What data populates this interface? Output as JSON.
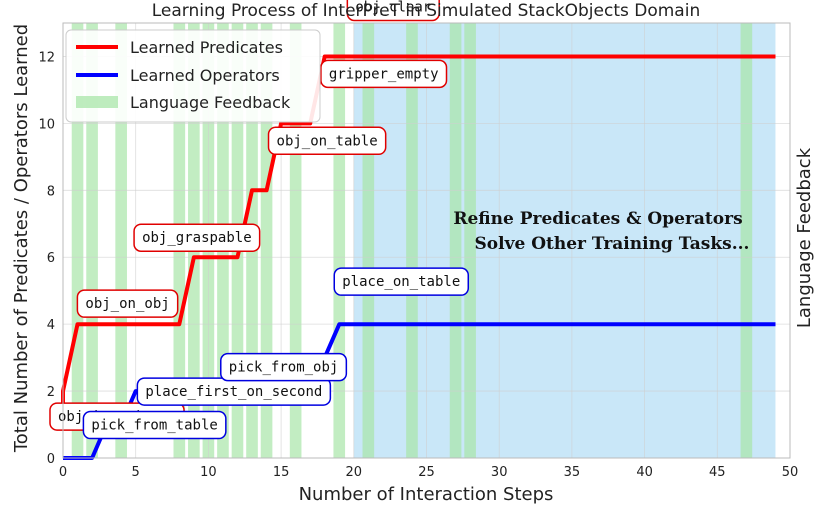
{
  "chart_data": {
    "type": "line",
    "title": "Learning Process of InterPreT in Simulated StackObjects Domain",
    "xlabel": "Number of Interaction Steps",
    "ylabel": "Total Number of Predicates / Operators Learned",
    "right_label": "Language Feedback",
    "xlim": [
      0,
      50
    ],
    "ylim": [
      0,
      13
    ],
    "x_ticks": [
      "0",
      "5",
      "10",
      "15",
      "20",
      "25",
      "30",
      "35",
      "40",
      "45",
      "50"
    ],
    "y_ticks": [
      "0",
      "2",
      "4",
      "6",
      "8",
      "10",
      "12"
    ],
    "grid": true,
    "legend_position": "top-left",
    "series": [
      {
        "name": "Learned Predicates",
        "color": "#ff0000",
        "points": [
          [
            0,
            1
          ],
          [
            0,
            2
          ],
          [
            1,
            4
          ],
          [
            2,
            4
          ],
          [
            3,
            4
          ],
          [
            4,
            4
          ],
          [
            5,
            4
          ],
          [
            6,
            4
          ],
          [
            7,
            4
          ],
          [
            8,
            4
          ],
          [
            9,
            6
          ],
          [
            10,
            6
          ],
          [
            11,
            6
          ],
          [
            12,
            6
          ],
          [
            13,
            8
          ],
          [
            14,
            8
          ],
          [
            15,
            10
          ],
          [
            16,
            10
          ],
          [
            17,
            10
          ],
          [
            18,
            12
          ],
          [
            19,
            12
          ],
          [
            20,
            12
          ],
          [
            49,
            12
          ]
        ]
      },
      {
        "name": "Learned Operators",
        "color": "#0000ff",
        "points": [
          [
            0,
            0
          ],
          [
            1,
            0
          ],
          [
            2,
            0
          ],
          [
            3,
            1
          ],
          [
            4,
            1
          ],
          [
            5,
            2
          ],
          [
            6,
            2
          ],
          [
            7,
            2
          ],
          [
            8,
            2
          ],
          [
            9,
            2
          ],
          [
            10,
            2
          ],
          [
            11,
            2
          ],
          [
            12,
            2
          ],
          [
            13,
            2
          ],
          [
            14,
            3
          ],
          [
            15,
            3
          ],
          [
            16,
            3
          ],
          [
            17,
            3
          ],
          [
            18,
            3
          ],
          [
            19,
            4
          ],
          [
            20,
            4
          ],
          [
            49,
            4
          ]
        ]
      }
    ],
    "feedback": {
      "name": "Language Feedback",
      "color": "#a8e6a8",
      "steps": [
        1,
        2,
        4,
        8,
        9,
        10,
        11,
        12,
        13,
        14,
        16,
        19,
        21,
        24,
        27,
        28,
        47
      ]
    },
    "refine_region": {
      "x": [
        20,
        49
      ],
      "color": "#bfe3f7"
    },
    "predicate_annotations": [
      {
        "text": "obj_in_gripper",
        "x": 0,
        "y": 2
      },
      {
        "text": "obj_on_obj",
        "x": 1,
        "y": 4
      },
      {
        "text": "obj_graspable",
        "x": 9,
        "y": 6
      },
      {
        "text": "obj_on_table",
        "x": 15,
        "y": 8
      },
      {
        "text": "gripper_empty",
        "x": 18,
        "y": 10
      },
      {
        "text": "obj_clear",
        "x": 19,
        "y": 12
      }
    ],
    "operator_annotations": [
      {
        "text": "pick_from_table",
        "x": 3,
        "y": 1
      },
      {
        "text": "place_first_on_second",
        "x": 9,
        "y": 2
      },
      {
        "text": "pick_from_obj",
        "x": 14,
        "y": 3
      },
      {
        "text": "place_on_table",
        "x": 19,
        "y": 4
      }
    ],
    "notes": [
      "Refine Predicates & Operators",
      "Solve Other Training Tasks..."
    ]
  }
}
